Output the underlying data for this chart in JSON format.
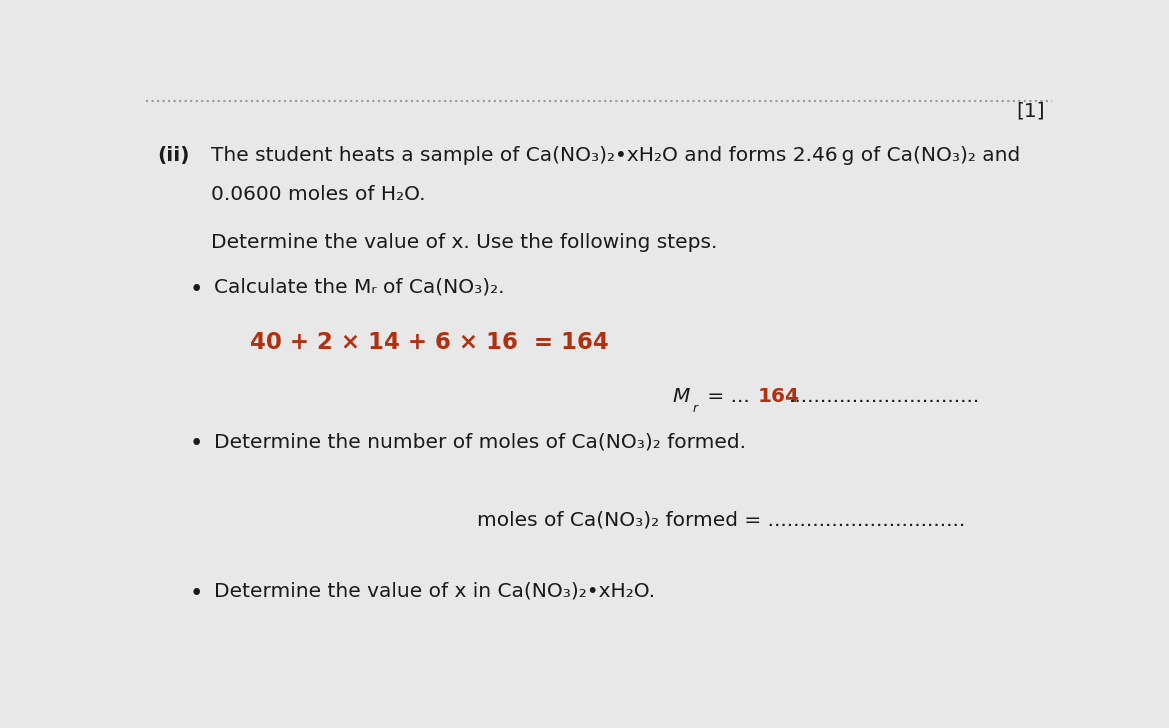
{
  "background_color": "#e8e8e8",
  "text_color": "#1a1a1a",
  "red_color": "#b03010",
  "dot_line_color": "#999999",
  "bracket_text": "[1]",
  "ii_label": "(ii)",
  "line1": "The student heats a sample of Ca(NO₃)₂•xH₂O and forms 2.46 g of Ca(NO₃)₂ and",
  "line2": "0.0600 moles of H₂O.",
  "determine_text": "Determine the value of x. Use the following steps.",
  "bullet1_text": "Calculate the Mᵣ of Ca(NO₃)₂.",
  "calc_text": "40 + 2 × 14 + 6 × 16  = 164",
  "mr_prefix": "M",
  "mr_sub": "r",
  "mr_middle": " = ...",
  "mr_answer": "164",
  "mr_dots": "..............................",
  "bullet2_text": "Determine the number of moles of Ca(NO₃)₂ formed.",
  "moles_prefix": "moles of Ca(NO₃)₂ formed = ",
  "moles_dots": "...............................",
  "bullet3_text": "Determine the value of x in Ca(NO₃)₂•xH₂O.",
  "font_size": 14.5,
  "calc_font_size": 16.5
}
